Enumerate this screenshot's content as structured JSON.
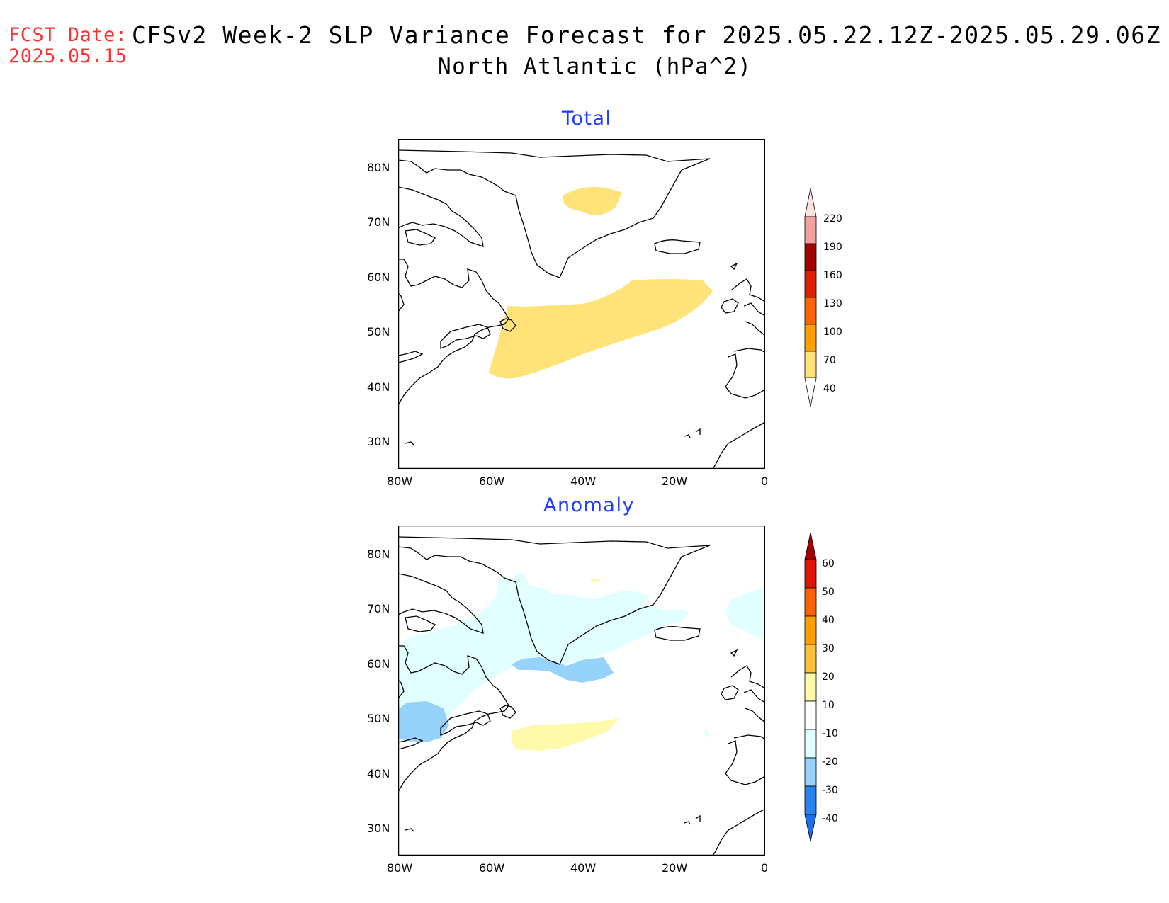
{
  "header": {
    "fcst_label": "FCST Date:",
    "fcst_date": "2025.05.15",
    "title": "CFSv2 Week-2 SLP Variance Forecast for 2025.05.22.12Z-2025.05.29.06Z",
    "subtitle": "North Atlantic (hPa^2)"
  },
  "panels": [
    {
      "title": "Total",
      "lat_ticks": [
        "80N",
        "70N",
        "60N",
        "50N",
        "40N",
        "30N"
      ],
      "lon_ticks": [
        "80W",
        "60W",
        "40W",
        "20W",
        "0"
      ],
      "colorbar": {
        "levels": [
          "40",
          "70",
          "100",
          "130",
          "160",
          "190",
          "220"
        ],
        "colors": [
          "#ffe278",
          "#ffa000",
          "#ff6400",
          "#e01e00",
          "#a50000",
          "#f4a0a0",
          "#fde0e0"
        ]
      }
    },
    {
      "title": "Anomaly",
      "lat_ticks": [
        "80N",
        "70N",
        "60N",
        "50N",
        "40N",
        "30N"
      ],
      "lon_ticks": [
        "80W",
        "60W",
        "40W",
        "20W",
        "0"
      ],
      "colorbar": {
        "levels": [
          "-40",
          "-30",
          "-20",
          "-10",
          "10",
          "20",
          "30",
          "40",
          "50",
          "60"
        ],
        "colors": [
          "#1e6ee6",
          "#2882f0",
          "#96d2fa",
          "#e1ffff",
          "#ffffff",
          "#fffaaa",
          "#ffc03c",
          "#ffa000",
          "#ff6000",
          "#e11400",
          "#a50000"
        ]
      }
    }
  ],
  "map": {
    "lat_range": [
      25,
      85
    ],
    "lon_range": [
      -80,
      0
    ],
    "land_fill": "none",
    "coastline_color": "#000000"
  }
}
